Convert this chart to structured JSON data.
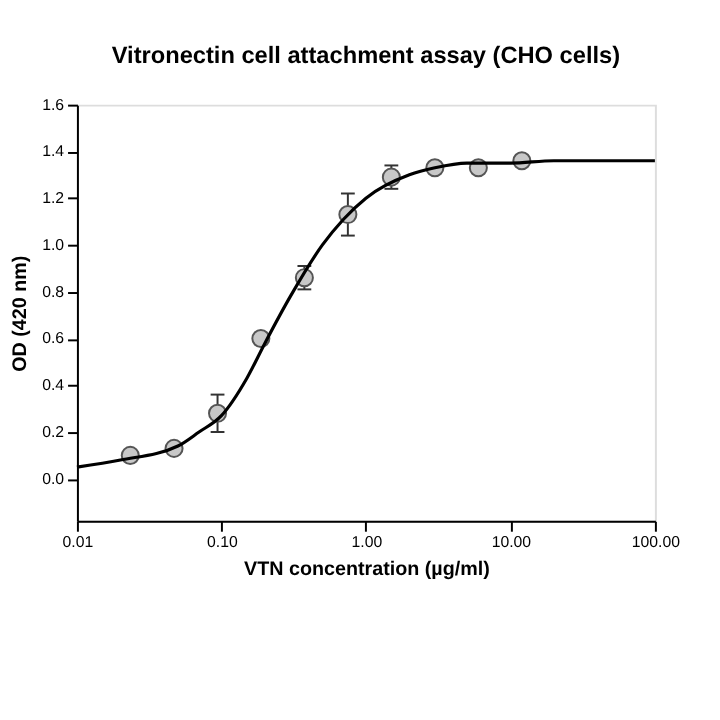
{
  "chart_data": {
    "type": "scatter",
    "title": "Vitronectin cell attachment assay (CHO cells)",
    "xlabel": "VTN concentration (µg/ml)",
    "ylabel": "OD (420 nm)",
    "log": "x",
    "xlim": [
      0.01,
      100
    ],
    "xticks": [
      {
        "value": 0.01,
        "label": "0.01"
      },
      {
        "value": 0.1,
        "label": "0.10"
      },
      {
        "value": 1,
        "label": "1.00"
      },
      {
        "value": 10,
        "label": "10.00"
      },
      {
        "value": 100,
        "label": "100.00"
      }
    ],
    "ylim": [
      -0.18,
      1.6
    ],
    "yticks": [
      {
        "value": 0,
        "label": "0.0"
      },
      {
        "value": 0.2,
        "label": "0.2"
      },
      {
        "value": 0.4,
        "label": "0.4"
      },
      {
        "value": 0.6,
        "label": "0.6"
      },
      {
        "value": 0.8,
        "label": "0.8"
      },
      {
        "value": 1.0,
        "label": "1.0"
      },
      {
        "value": 1.2,
        "label": "1.2"
      },
      {
        "value": 1.4,
        "label": "1.4"
      },
      {
        "value": 1.6,
        "label": "1.6"
      }
    ],
    "grid": false,
    "series": [
      {
        "color": "#c8c8c8",
        "marker": "circle",
        "x": [
          0.0234,
          0.047,
          0.094,
          0.1875,
          0.375,
          0.75,
          1.5,
          3,
          6,
          12
        ],
        "values": [
          0.1,
          0.13,
          0.28,
          0.6,
          0.86,
          1.13,
          1.29,
          1.33,
          1.33,
          1.36
        ],
        "errors": [
          null,
          null,
          0.08,
          null,
          0.05,
          0.09,
          0.05,
          null,
          null,
          null
        ]
      },
      {
        "type": "line",
        "color": "#000000",
        "marker": "none",
        "line_style": "solid",
        "x": [
          0.01,
          0.02,
          0.05,
          0.07,
          0.1,
          0.15,
          0.2,
          0.3,
          0.5,
          0.7,
          1,
          2,
          3,
          5,
          10,
          20,
          100
        ],
        "values": [
          0.05,
          0.08,
          0.14,
          0.2,
          0.27,
          0.43,
          0.58,
          0.78,
          1.0,
          1.11,
          1.2,
          1.3,
          1.33,
          1.35,
          1.35,
          1.36,
          1.36
        ]
      }
    ]
  }
}
